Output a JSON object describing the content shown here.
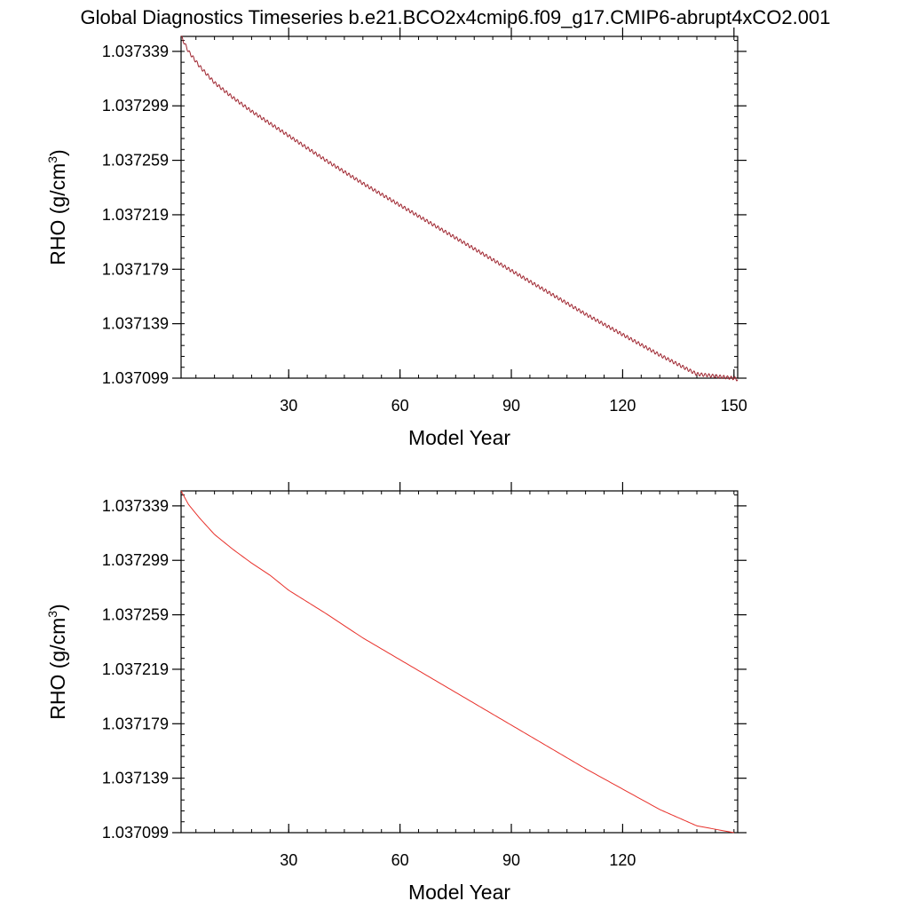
{
  "figure": {
    "title": "Global Diagnostics Timeseries b.e21.BCO2x4cmip6.f09_g17.CMIP6-abrupt4xCO2.001"
  },
  "chart_data": [
    {
      "type": "line",
      "title": "",
      "xlabel": "Model Year",
      "ylabel_main": "RHO (g/cm",
      "ylabel_sup": "3",
      "ylabel_close": ")",
      "xlim": [
        1,
        151
      ],
      "ylim": [
        1.037099,
        1.03735
      ],
      "xticks": [
        30,
        60,
        90,
        120,
        150
      ],
      "xtick_labels": [
        "30",
        "60",
        "90",
        "120",
        "150"
      ],
      "yticks": [
        1.037099,
        1.037139,
        1.037179,
        1.037219,
        1.037259,
        1.037299,
        1.037339
      ],
      "ytick_labels": [
        "1.037099",
        "1.037139",
        "1.037179",
        "1.037219",
        "1.037259",
        "1.037299",
        "1.037339"
      ],
      "grid": false,
      "series": [
        {
          "color": "#d42020",
          "overlay_color": "#3a3a5a",
          "seasonal_cycle": true,
          "x": [
            1,
            3,
            6,
            10,
            15,
            20,
            25,
            30,
            40,
            50,
            60,
            70,
            80,
            90,
            100,
            110,
            120,
            130,
            140,
            150,
            151
          ],
          "y": [
            1.03735,
            1.037339,
            1.037328,
            1.037316,
            1.037305,
            1.037295,
            1.037286,
            1.037277,
            1.037259,
            1.037242,
            1.037226,
            1.03721,
            1.037194,
            1.037178,
            1.037162,
            1.037146,
            1.037131,
            1.037116,
            1.037102,
            1.037099,
            1.037098
          ]
        }
      ]
    },
    {
      "type": "line",
      "title": "",
      "xlabel": "Model Year",
      "ylabel_main": "RHO (g/cm",
      "ylabel_sup": "3",
      "ylabel_close": ")",
      "xlim": [
        1,
        151
      ],
      "ylim": [
        1.037099,
        1.03735
      ],
      "xticks": [
        30,
        60,
        90,
        120
      ],
      "xtick_labels": [
        "30",
        "60",
        "90",
        "120"
      ],
      "yticks": [
        1.037099,
        1.037139,
        1.037179,
        1.037219,
        1.037259,
        1.037299,
        1.037339
      ],
      "ytick_labels": [
        "1.037099",
        "1.037139",
        "1.037179",
        "1.037219",
        "1.037259",
        "1.037299",
        "1.037339"
      ],
      "grid": false,
      "series": [
        {
          "color": "#e8302a",
          "seasonal_cycle": false,
          "x": [
            1,
            3,
            6,
            10,
            15,
            20,
            25,
            30,
            40,
            50,
            60,
            70,
            80,
            90,
            100,
            110,
            120,
            130,
            140,
            150
          ],
          "y": [
            1.03735,
            1.03734,
            1.03733,
            1.037318,
            1.037307,
            1.037297,
            1.037288,
            1.037277,
            1.03726,
            1.037242,
            1.037226,
            1.03721,
            1.037194,
            1.037178,
            1.037162,
            1.037146,
            1.037131,
            1.037116,
            1.037104,
            1.037099
          ]
        }
      ]
    }
  ]
}
